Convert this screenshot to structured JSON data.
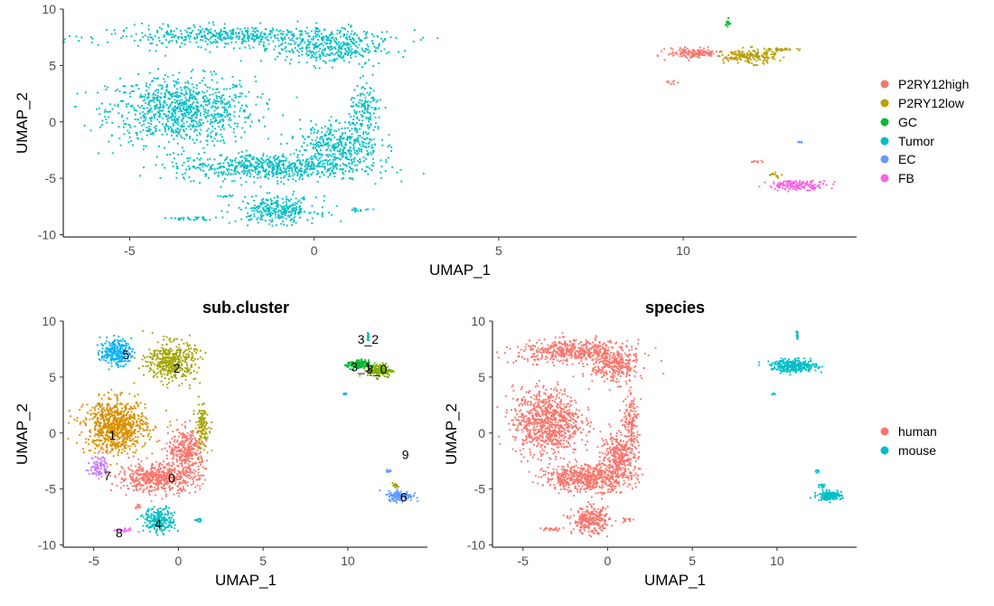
{
  "chart_data": [
    {
      "id": "top",
      "type": "scatter",
      "title": "",
      "xlabel": "UMAP_1",
      "ylabel": "UMAP_2",
      "xlim": [
        -6.8,
        14.7
      ],
      "ylim": [
        -10.2,
        10
      ],
      "xticks": [
        -5,
        0,
        5,
        10
      ],
      "yticks": [
        -10,
        -5,
        0,
        5,
        10
      ],
      "legend": "right",
      "grid": false,
      "series": [
        {
          "name": "P2RY12high",
          "color": "#F8766D"
        },
        {
          "name": "P2RY12low",
          "color": "#B79F00"
        },
        {
          "name": "GC",
          "color": "#00BA38"
        },
        {
          "name": "Tumor",
          "color": "#00BFC4"
        },
        {
          "name": "EC",
          "color": "#619CFF"
        },
        {
          "name": "FB",
          "color": "#F564E3"
        }
      ],
      "clusters": [
        {
          "series": 3,
          "cx": -3.6,
          "cy": 1.0,
          "rx": 2.2,
          "ry": 3.3,
          "n": 900
        },
        {
          "series": 3,
          "cx": -2.0,
          "cy": 7.6,
          "rx": 4.0,
          "ry": 1.0,
          "n": 520
        },
        {
          "series": 3,
          "cx": 0.4,
          "cy": 6.5,
          "rx": 1.6,
          "ry": 1.6,
          "n": 320
        },
        {
          "series": 3,
          "cx": -1.2,
          "cy": -4.0,
          "rx": 2.8,
          "ry": 1.3,
          "n": 640
        },
        {
          "series": 3,
          "cx": 0.7,
          "cy": -2.0,
          "rx": 1.2,
          "ry": 2.2,
          "n": 360
        },
        {
          "series": 3,
          "cx": 1.4,
          "cy": 1.0,
          "rx": 0.5,
          "ry": 2.6,
          "n": 140
        },
        {
          "series": 3,
          "cx": -1.0,
          "cy": -7.8,
          "rx": 1.2,
          "ry": 1.3,
          "n": 300
        },
        {
          "series": 3,
          "cx": -3.3,
          "cy": -8.6,
          "rx": 0.8,
          "ry": 0.2,
          "n": 30
        },
        {
          "series": 3,
          "cx": -2.4,
          "cy": -6.6,
          "rx": 0.2,
          "ry": 0.2,
          "n": 10
        },
        {
          "series": 3,
          "cx": 1.2,
          "cy": -7.8,
          "rx": 0.4,
          "ry": 0.2,
          "n": 14
        },
        {
          "series": 0,
          "cx": 10.3,
          "cy": 6.1,
          "rx": 0.8,
          "ry": 0.5,
          "n": 150
        },
        {
          "series": 1,
          "cx": 11.8,
          "cy": 5.8,
          "rx": 0.8,
          "ry": 0.7,
          "n": 170
        },
        {
          "series": 1,
          "cx": 12.7,
          "cy": 6.4,
          "rx": 0.4,
          "ry": 0.15,
          "n": 30
        },
        {
          "series": 2,
          "cx": 11.2,
          "cy": 8.7,
          "rx": 0.08,
          "ry": 0.5,
          "n": 15
        },
        {
          "series": 0,
          "cx": 9.7,
          "cy": 3.5,
          "rx": 0.2,
          "ry": 0.15,
          "n": 8
        },
        {
          "series": 4,
          "cx": 13.2,
          "cy": -1.8,
          "rx": 0.12,
          "ry": 0.1,
          "n": 5
        },
        {
          "series": 0,
          "cx": 12.0,
          "cy": -3.5,
          "rx": 0.25,
          "ry": 0.12,
          "n": 8
        },
        {
          "series": 5,
          "cx": 13.1,
          "cy": -5.6,
          "rx": 0.9,
          "ry": 0.45,
          "n": 170
        },
        {
          "series": 1,
          "cx": 12.5,
          "cy": -4.7,
          "rx": 0.2,
          "ry": 0.25,
          "n": 12
        }
      ]
    },
    {
      "id": "bottom-left",
      "type": "scatter",
      "title": "sub.cluster",
      "xlabel": "UMAP_1",
      "ylabel": "UMAP_2",
      "xlim": [
        -6.8,
        14.7
      ],
      "ylim": [
        -10.2,
        10
      ],
      "xticks": [
        -5,
        0,
        5,
        10
      ],
      "yticks": [
        -10,
        -5,
        0,
        5,
        10
      ],
      "grid": false,
      "series": [
        {
          "name": "0",
          "color": "#F8766D"
        },
        {
          "name": "1",
          "color": "#D89000"
        },
        {
          "name": "2",
          "color": "#A3A500"
        },
        {
          "name": "3_0",
          "color": "#7CAE00"
        },
        {
          "name": "3_1",
          "color": "#00BA38"
        },
        {
          "name": "3_2",
          "color": "#00C1A3"
        },
        {
          "name": "4",
          "color": "#00BFC4"
        },
        {
          "name": "5",
          "color": "#00B0F6"
        },
        {
          "name": "6",
          "color": "#619CFF"
        },
        {
          "name": "7",
          "color": "#C77CFF"
        },
        {
          "name": "8",
          "color": "#E76BF3"
        },
        {
          "name": "9",
          "color": "#A3A500"
        }
      ],
      "cluster_labels": [
        {
          "text": "0",
          "x": -0.4,
          "y": -4.0
        },
        {
          "text": "1",
          "x": -3.9,
          "y": -0.2
        },
        {
          "text": "2",
          "x": -0.1,
          "y": 5.8
        },
        {
          "text": "3_0",
          "x": 11.7,
          "y": 5.7
        },
        {
          "text": "3_1",
          "x": 10.8,
          "y": 5.9
        },
        {
          "text": "3_2",
          "x": 11.2,
          "y": 8.4
        },
        {
          "text": "4",
          "x": -1.2,
          "y": -8.1
        },
        {
          "text": "5",
          "x": -3.1,
          "y": 7.0
        },
        {
          "text": "6",
          "x": 13.3,
          "y": -5.7
        },
        {
          "text": "7",
          "x": -4.2,
          "y": -3.8
        },
        {
          "text": "8",
          "x": -3.5,
          "y": -8.9
        },
        {
          "text": "9",
          "x": 13.4,
          "y": -1.9
        }
      ],
      "clusters": [
        {
          "series": 0,
          "cx": -1.2,
          "cy": -4.0,
          "rx": 2.6,
          "ry": 1.4,
          "n": 560
        },
        {
          "series": 0,
          "cx": 0.5,
          "cy": -1.5,
          "rx": 1.2,
          "ry": 2.1,
          "n": 330
        },
        {
          "series": 0,
          "cx": -2.4,
          "cy": -6.6,
          "rx": 0.2,
          "ry": 0.2,
          "n": 8
        },
        {
          "series": 1,
          "cx": -3.7,
          "cy": 0.6,
          "rx": 2.0,
          "ry": 2.6,
          "n": 820
        },
        {
          "series": 2,
          "cx": -0.4,
          "cy": 6.4,
          "rx": 1.6,
          "ry": 1.9,
          "n": 430
        },
        {
          "series": 2,
          "cx": 1.4,
          "cy": 0.6,
          "rx": 0.45,
          "ry": 2.3,
          "n": 120
        },
        {
          "series": 7,
          "cx": -3.7,
          "cy": 7.2,
          "rx": 1.0,
          "ry": 1.3,
          "n": 230
        },
        {
          "series": 9,
          "cx": -4.7,
          "cy": -3.0,
          "rx": 0.6,
          "ry": 1.1,
          "n": 90
        },
        {
          "series": 6,
          "cx": -1.1,
          "cy": -7.8,
          "rx": 1.0,
          "ry": 1.2,
          "n": 230
        },
        {
          "series": 6,
          "cx": 1.2,
          "cy": -7.8,
          "rx": 0.3,
          "ry": 0.2,
          "n": 12
        },
        {
          "series": 10,
          "cx": -3.3,
          "cy": -8.7,
          "rx": 0.7,
          "ry": 0.2,
          "n": 20
        },
        {
          "series": 4,
          "cx": 10.6,
          "cy": 6.1,
          "rx": 0.7,
          "ry": 0.45,
          "n": 150
        },
        {
          "series": 3,
          "cx": 11.9,
          "cy": 5.6,
          "rx": 0.8,
          "ry": 0.7,
          "n": 150
        },
        {
          "series": 5,
          "cx": 11.2,
          "cy": 8.7,
          "rx": 0.08,
          "ry": 0.5,
          "n": 15
        },
        {
          "series": 7,
          "cx": 9.8,
          "cy": 3.5,
          "rx": 0.15,
          "ry": 0.15,
          "n": 6
        },
        {
          "series": 8,
          "cx": 13.1,
          "cy": -5.6,
          "rx": 0.8,
          "ry": 0.5,
          "n": 150
        },
        {
          "series": 8,
          "cx": 12.4,
          "cy": -3.4,
          "rx": 0.2,
          "ry": 0.15,
          "n": 8
        },
        {
          "series": 11,
          "cx": 12.8,
          "cy": -4.7,
          "rx": 0.25,
          "ry": 0.25,
          "n": 14
        }
      ]
    },
    {
      "id": "bottom-right",
      "type": "scatter",
      "title": "species",
      "xlabel": "UMAP_1",
      "ylabel": "UMAP_2",
      "xlim": [
        -6.8,
        14.7
      ],
      "ylim": [
        -10.2,
        10
      ],
      "xticks": [
        -5,
        0,
        5,
        10
      ],
      "yticks": [
        -10,
        -5,
        0,
        5,
        10
      ],
      "legend": "right",
      "grid": false,
      "series": [
        {
          "name": "human",
          "color": "#F8766D"
        },
        {
          "name": "mouse",
          "color": "#00BFC4"
        }
      ],
      "clusters": [
        {
          "series": 0,
          "cx": -3.6,
          "cy": 1.0,
          "rx": 2.2,
          "ry": 3.3,
          "n": 850
        },
        {
          "series": 0,
          "cx": -2.0,
          "cy": 7.3,
          "rx": 3.6,
          "ry": 1.1,
          "n": 480
        },
        {
          "series": 0,
          "cx": 0.4,
          "cy": 6.0,
          "rx": 1.5,
          "ry": 1.7,
          "n": 300
        },
        {
          "series": 0,
          "cx": -1.2,
          "cy": -4.0,
          "rx": 2.8,
          "ry": 1.3,
          "n": 600
        },
        {
          "series": 0,
          "cx": 0.7,
          "cy": -2.0,
          "rx": 1.2,
          "ry": 2.2,
          "n": 330
        },
        {
          "series": 0,
          "cx": 1.4,
          "cy": 1.0,
          "rx": 0.5,
          "ry": 2.6,
          "n": 130
        },
        {
          "series": 0,
          "cx": -1.0,
          "cy": -7.8,
          "rx": 1.2,
          "ry": 1.3,
          "n": 280
        },
        {
          "series": 0,
          "cx": -3.3,
          "cy": -8.6,
          "rx": 0.8,
          "ry": 0.2,
          "n": 25
        },
        {
          "series": 0,
          "cx": 1.2,
          "cy": -7.8,
          "rx": 0.4,
          "ry": 0.2,
          "n": 12
        },
        {
          "series": 1,
          "cx": 11.0,
          "cy": 6.0,
          "rx": 1.5,
          "ry": 0.6,
          "n": 300
        },
        {
          "series": 1,
          "cx": 11.2,
          "cy": 8.7,
          "rx": 0.08,
          "ry": 0.5,
          "n": 15
        },
        {
          "series": 1,
          "cx": 9.8,
          "cy": 3.5,
          "rx": 0.15,
          "ry": 0.15,
          "n": 6
        },
        {
          "series": 1,
          "cx": 12.4,
          "cy": -3.4,
          "rx": 0.2,
          "ry": 0.15,
          "n": 8
        },
        {
          "series": 1,
          "cx": 13.1,
          "cy": -5.6,
          "rx": 0.8,
          "ry": 0.45,
          "n": 150
        },
        {
          "series": 1,
          "cx": 12.7,
          "cy": -4.7,
          "rx": 0.2,
          "ry": 0.25,
          "n": 12
        }
      ]
    }
  ]
}
